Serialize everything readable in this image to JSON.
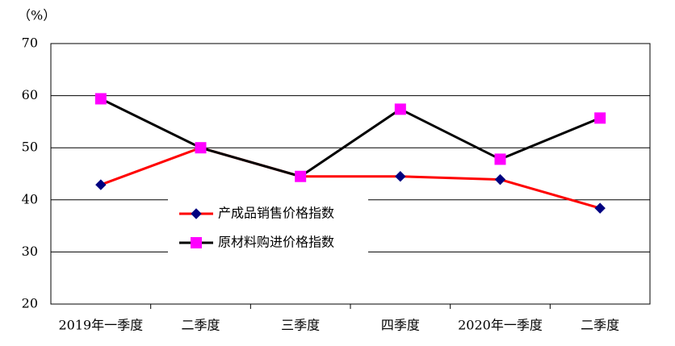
{
  "chart_data": {
    "type": "line",
    "y_label": "（%）",
    "categories": [
      "2019年一季度",
      "二季度",
      "三季度",
      "四季度",
      "2020年一季度",
      "二季度"
    ],
    "series": [
      {
        "name": "产成品销售价格指数",
        "color": "#ff0000",
        "marker_color": "#000080",
        "marker": "diamond",
        "values": [
          42.9,
          50.0,
          44.5,
          44.5,
          43.9,
          38.4
        ]
      },
      {
        "name": "原材料购进价格指数",
        "color": "#000000",
        "marker_color": "#ff00ff",
        "marker": "square",
        "values": [
          59.4,
          50.0,
          44.5,
          57.4,
          47.8,
          55.7
        ]
      }
    ],
    "ylim": [
      20,
      70
    ],
    "yticks": [
      20,
      30,
      40,
      50,
      60,
      70
    ],
    "grid": true,
    "legend": "center"
  }
}
